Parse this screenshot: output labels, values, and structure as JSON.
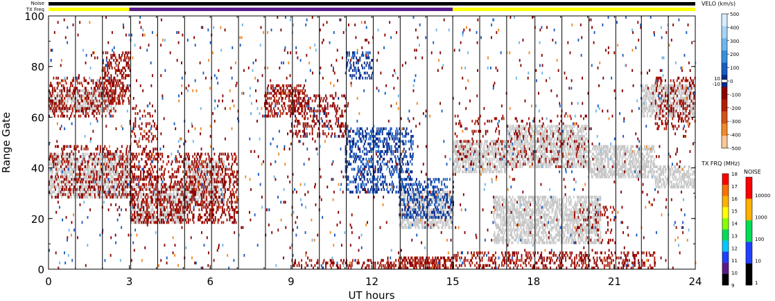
{
  "chart_data": {
    "type": "heatmap",
    "header": {
      "noise_label": "Noise",
      "txfreq_label": "TX Freq"
    },
    "xlabel": "UT hours",
    "ylabel": "Range Gate",
    "xlim": [
      0,
      24
    ],
    "ylim": [
      0,
      100
    ],
    "x_ticks": [
      0,
      3,
      6,
      9,
      12,
      15,
      18,
      21,
      24
    ],
    "y_ticks": [
      0,
      20,
      40,
      60,
      80,
      100
    ],
    "scan_boundaries_hours": [
      0.0,
      1.0,
      2.0,
      3.05,
      4.05,
      5.05,
      6.05,
      7.05,
      8.05,
      9.05,
      10.05,
      11.05,
      12.05,
      13.05,
      14.05,
      15.0,
      16.0,
      17.0,
      18.05,
      19.05,
      20.05,
      21.05,
      22.0,
      23.0,
      24.0
    ],
    "noise_bar": {
      "color": "#000000",
      "from": 0,
      "to": 24
    },
    "txfreq_bar": [
      {
        "from": 0,
        "to": 3,
        "color": "#ffff00"
      },
      {
        "from": 3,
        "to": 15,
        "color": "#5b1a8a"
      },
      {
        "from": 15,
        "to": 24,
        "color": "#ffff00"
      }
    ],
    "ground_scatter_color": "#c8c8c8",
    "ground_scatter_regions": [
      {
        "t0": 0.0,
        "t1": 3.0,
        "g0": 28,
        "g1": 45
      },
      {
        "t0": 0.0,
        "t1": 2.5,
        "g0": 62,
        "g1": 70
      },
      {
        "t0": 3.0,
        "t1": 5.0,
        "g0": 18,
        "g1": 32
      },
      {
        "t0": 5.0,
        "t1": 6.5,
        "g0": 25,
        "g1": 42
      },
      {
        "t0": 15.0,
        "t1": 17.0,
        "g0": 38,
        "g1": 50
      },
      {
        "t0": 17.0,
        "t1": 20.0,
        "g0": 40,
        "g1": 56
      },
      {
        "t0": 20.0,
        "t1": 22.5,
        "g0": 36,
        "g1": 48
      },
      {
        "t0": 22.5,
        "t1": 24.0,
        "g0": 32,
        "g1": 40
      },
      {
        "t0": 16.5,
        "t1": 20.5,
        "g0": 10,
        "g1": 28
      },
      {
        "t0": 22.0,
        "t1": 24.0,
        "g0": 60,
        "g1": 72
      },
      {
        "t0": 13.0,
        "t1": 15.0,
        "g0": 16,
        "g1": 30
      }
    ],
    "echo_regions": [
      {
        "t0": 0.0,
        "t1": 3.0,
        "g0": 28,
        "g1": 48,
        "vel": -150,
        "density": 0.35
      },
      {
        "t0": 0.0,
        "t1": 2.5,
        "g0": 60,
        "g1": 75,
        "vel": -150,
        "density": 0.45
      },
      {
        "t0": 2.0,
        "t1": 3.0,
        "g0": 65,
        "g1": 85,
        "vel": -150,
        "density": 0.5
      },
      {
        "t0": 3.0,
        "t1": 7.0,
        "g0": 18,
        "g1": 45,
        "vel": -150,
        "density": 0.5
      },
      {
        "t0": 3.0,
        "t1": 4.0,
        "g0": 45,
        "g1": 65,
        "vel": -150,
        "density": 0.25
      },
      {
        "t0": 8.0,
        "t1": 9.5,
        "g0": 60,
        "g1": 72,
        "vel": -150,
        "density": 0.6
      },
      {
        "t0": 9.0,
        "t1": 11.0,
        "g0": 52,
        "g1": 68,
        "vel": -130,
        "density": 0.45
      },
      {
        "t0": 11.0,
        "t1": 13.5,
        "g0": 30,
        "g1": 55,
        "vel": 50,
        "density": 0.55
      },
      {
        "t0": 13.0,
        "t1": 15.0,
        "g0": 20,
        "g1": 35,
        "vel": 50,
        "density": 0.45
      },
      {
        "t0": 11.0,
        "t1": 12.0,
        "g0": 75,
        "g1": 85,
        "vel": 50,
        "density": 0.4
      },
      {
        "t0": 13.0,
        "t1": 15.0,
        "g0": 0,
        "g1": 4,
        "vel": -150,
        "density": 0.85
      },
      {
        "t0": 9.0,
        "t1": 13.0,
        "g0": 0,
        "g1": 3,
        "vel": -150,
        "density": 0.5
      },
      {
        "t0": 15.0,
        "t1": 22.5,
        "g0": 0,
        "g1": 6,
        "vel": -150,
        "density": 0.45
      },
      {
        "t0": 22.5,
        "t1": 24.0,
        "g0": 55,
        "g1": 75,
        "vel": -150,
        "density": 0.35
      },
      {
        "t0": 15.0,
        "t1": 20.0,
        "g0": 40,
        "g1": 60,
        "vel": -150,
        "density": 0.12
      },
      {
        "t0": 19.5,
        "t1": 21.0,
        "g0": 10,
        "g1": 25,
        "vel": -150,
        "density": 0.2
      }
    ],
    "velo_scale": {
      "title": "VELO (km/s)",
      "ticks": [
        "500",
        "400",
        "300",
        "200",
        "100",
        "0",
        "-100",
        "-200",
        "-300",
        "-400",
        "-500"
      ],
      "inner_ticks": [
        "10",
        "-10"
      ],
      "colors": [
        "#d6ecff",
        "#a8d4f5",
        "#6fb6ec",
        "#3a8fdc",
        "#1a5cc0",
        "#0a2a8a",
        "#8a0000",
        "#b01e0a",
        "#d2541a",
        "#f08a2a",
        "#fbc89a"
      ]
    },
    "txfreq_scale": {
      "title": "TX FRQ (MHz)",
      "ticks": [
        "18",
        "17",
        "16",
        "15",
        "14",
        "13",
        "12",
        "11",
        "10",
        "9"
      ],
      "colors": [
        "#ff0000",
        "#ff7000",
        "#ffb000",
        "#ffff00",
        "#88ff00",
        "#00dd55",
        "#00c8ff",
        "#2040ff",
        "#5b1a8a",
        "#000000"
      ]
    },
    "noise_scale": {
      "title": "NOISE",
      "ticks": [
        "10000",
        "1000",
        "100",
        "10",
        "1"
      ],
      "colors": [
        "#ff0000",
        "#ffb000",
        "#00dd55",
        "#2040ff",
        "#000000"
      ]
    },
    "colors": {
      "positive_echo": "#0a2a8a",
      "negative_echo": "#8a0000"
    }
  }
}
